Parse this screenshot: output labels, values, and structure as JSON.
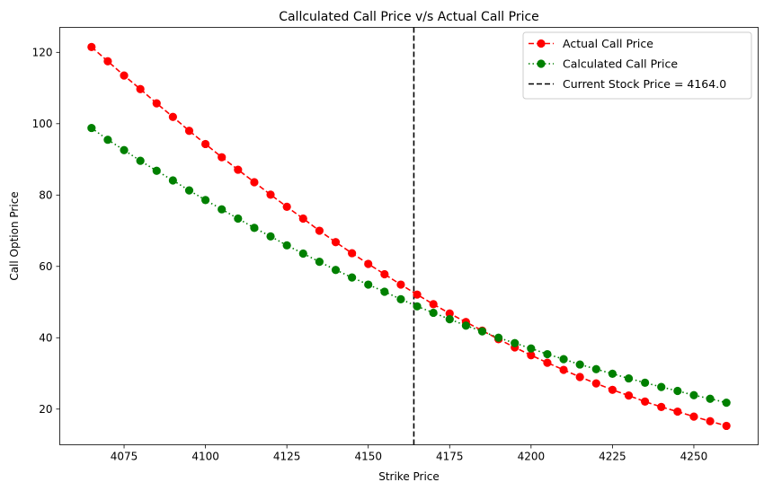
{
  "chart_data": {
    "type": "line",
    "title": "Callculated Call Price v/s Actual Call Price",
    "xlabel": "Strike Price",
    "ylabel": "Call Option Price",
    "xlim": [
      4055.25,
      4269.75
    ],
    "ylim": [
      10.0,
      127.0
    ],
    "x_ticks": [
      4075,
      4100,
      4125,
      4150,
      4175,
      4200,
      4225,
      4250
    ],
    "y_ticks": [
      20,
      40,
      60,
      80,
      100,
      120
    ],
    "grid": false,
    "legend_position": "top-right",
    "x": [
      4065,
      4070,
      4075,
      4080,
      4085,
      4090,
      4095,
      4100,
      4105,
      4110,
      4115,
      4120,
      4125,
      4130,
      4135,
      4140,
      4145,
      4150,
      4155,
      4160,
      4165,
      4170,
      4175,
      4180,
      4185,
      4190,
      4195,
      4200,
      4205,
      4210,
      4215,
      4220,
      4225,
      4230,
      4235,
      4240,
      4245,
      4250,
      4255,
      4260
    ],
    "series": [
      {
        "name": "Actual Call Price",
        "color": "#ff0000",
        "line_style": "dashed",
        "marker": "circle",
        "values": [
          121.5,
          117.5,
          113.5,
          109.7,
          105.7,
          101.9,
          98.0,
          94.3,
          90.6,
          87.1,
          83.6,
          80.1,
          76.7,
          73.4,
          70.0,
          66.8,
          63.7,
          60.7,
          57.8,
          54.9,
          52.1,
          49.4,
          46.8,
          44.4,
          42.0,
          39.6,
          37.3,
          35.1,
          33.0,
          31.0,
          29.0,
          27.2,
          25.4,
          23.8,
          22.1,
          20.6,
          19.3,
          17.9,
          16.6,
          15.3
        ]
      },
      {
        "name": "Calculated Call Price",
        "color": "#008000",
        "line_style": "dotted",
        "marker": "circle",
        "values": [
          98.8,
          95.5,
          92.6,
          89.6,
          86.8,
          84.1,
          81.3,
          78.6,
          76.0,
          73.4,
          70.8,
          68.4,
          65.9,
          63.6,
          61.3,
          59.0,
          56.9,
          54.9,
          52.9,
          50.8,
          48.8,
          47.0,
          45.2,
          43.4,
          41.8,
          40.0,
          38.5,
          37.0,
          35.4,
          34.0,
          32.5,
          31.2,
          29.9,
          28.6,
          27.4,
          26.2,
          25.1,
          23.9,
          22.9,
          21.8
        ]
      }
    ],
    "reference_lines": [
      {
        "orientation": "vertical",
        "x": 4164.0,
        "color": "#000000",
        "line_style": "dashed",
        "label": "Current Stock Price = 4164.0"
      }
    ]
  }
}
